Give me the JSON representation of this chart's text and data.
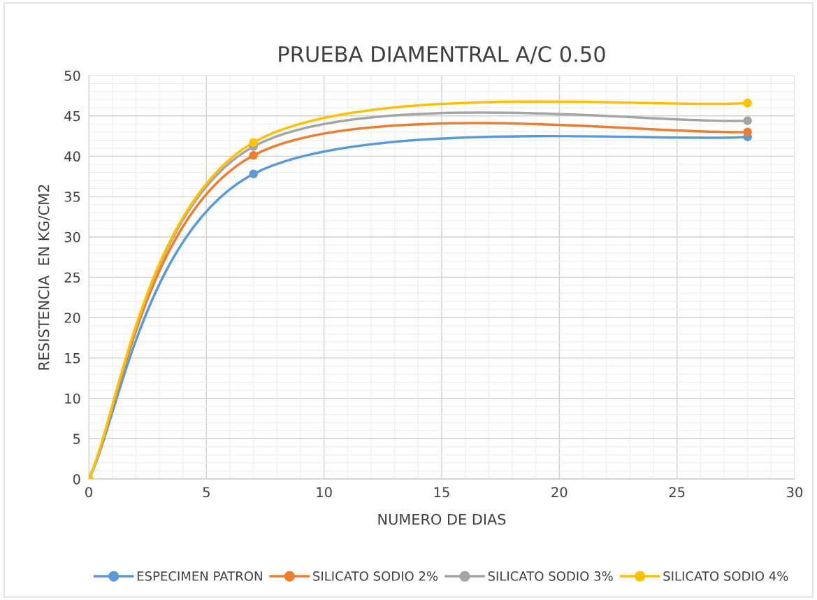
{
  "chart_data": {
    "type": "line",
    "title": "PRUEBA DIAMENTRAL A/C 0.50",
    "xlabel": "NUMERO DE DIAS",
    "ylabel": "RESISTENCIA  EN KG/CM2",
    "x": [
      0,
      7,
      28
    ],
    "series": [
      {
        "name": "ESPECIMEN PATRON",
        "color": "#5b9bd5",
        "values": [
          0,
          37.8,
          42.4
        ]
      },
      {
        "name": "SILICATO SODIO 2%",
        "color": "#ed7d31",
        "values": [
          0,
          40.1,
          43.0
        ]
      },
      {
        "name": "SILICATO SODIO 3%",
        "color": "#a5a5a5",
        "values": [
          0,
          41.2,
          44.4
        ]
      },
      {
        "name": "SILICATO SODIO 4%",
        "color": "#ffc000",
        "values": [
          0,
          41.7,
          46.6
        ]
      }
    ],
    "xlim": [
      0,
      30
    ],
    "xticks": [
      0,
      5,
      10,
      15,
      20,
      25,
      30
    ],
    "ylim": [
      0,
      50
    ],
    "yticks": [
      0,
      5,
      10,
      15,
      20,
      25,
      30,
      35,
      40,
      45,
      50
    ],
    "grid": true,
    "legend": "bottom",
    "marker": "circle",
    "line_style": "solid"
  }
}
